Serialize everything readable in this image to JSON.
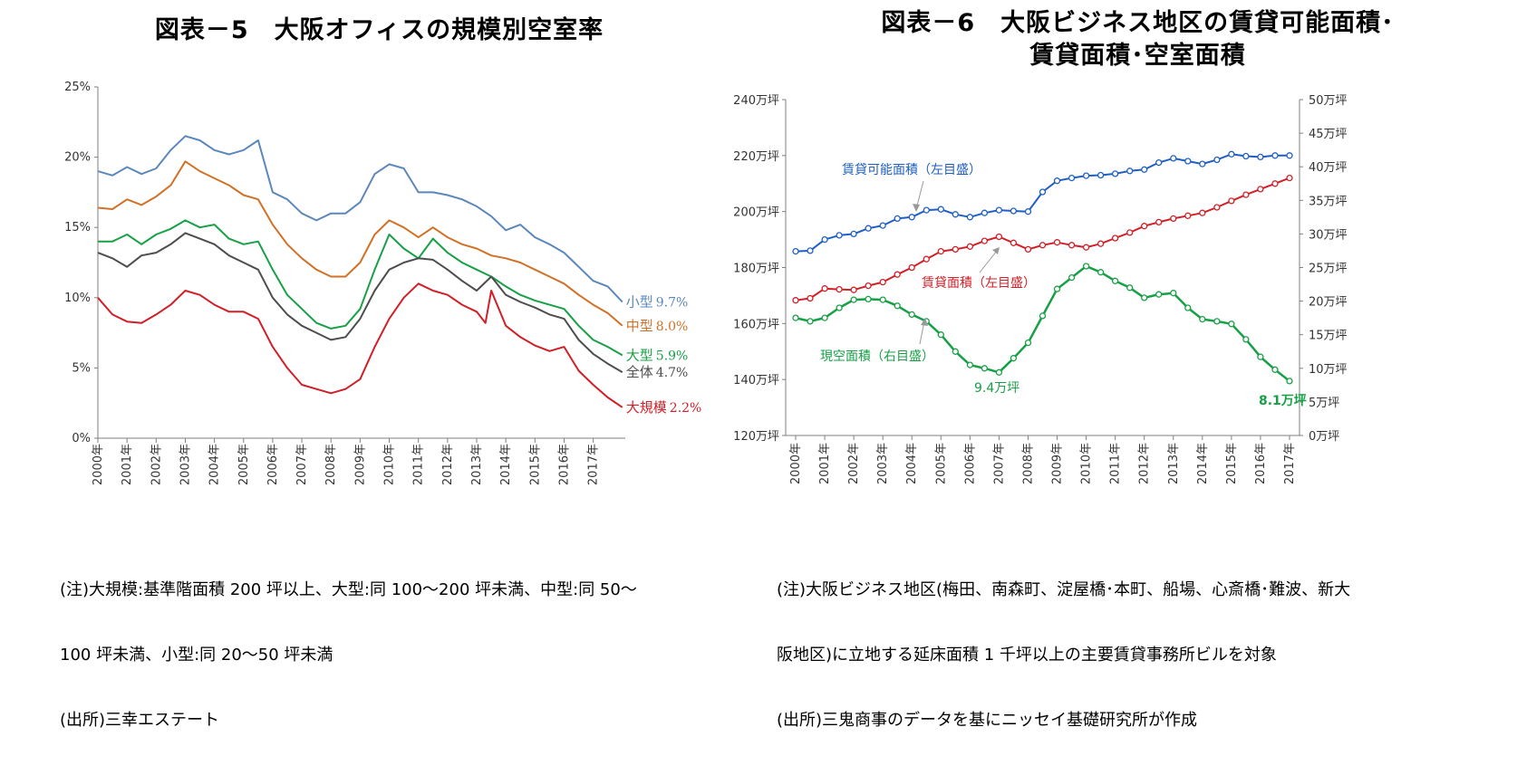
{
  "left": {
    "title": "図表－5　大阪オフィスの規模別空室率",
    "notes": [
      "(注)大規模:基準階面積 200 坪以上、大型:同 100～200 坪未満、中型:同 50～",
      "100 坪未満、小型:同 20～50 坪未満",
      "(出所)三幸エステート"
    ]
  },
  "right": {
    "title_line1": "図表－6　大阪ビジネス地区の賃貸可能面積･",
    "title_line2": "賃貸面積･空室面積",
    "notes": [
      "(注)大阪ビジネス地区(梅田、南森町、淀屋橋･本町、船場、心斎橋･難波、新大",
      "阪地区)に立地する延床面積 1 千坪以上の主要賃貸事務所ビルを対象",
      "(出所)三鬼商事のデータを基にニッセイ基礎研究所が作成"
    ]
  },
  "chart_data": [
    {
      "type": "line",
      "title": "図表－5　大阪オフィスの規模別空室率",
      "ylim": [
        0,
        25
      ],
      "yticks": [
        "0%",
        "5%",
        "10%",
        "15%",
        "20%",
        "25%"
      ],
      "xlim": [
        2000.0,
        2018.1
      ],
      "categories": [
        "2000年",
        "2001年",
        "2002年",
        "2003年",
        "2004年",
        "2005年",
        "2006年",
        "2007年",
        "2008年",
        "2009年",
        "2010年",
        "2011年",
        "2012年",
        "2013年",
        "2014年",
        "2015年",
        "2016年",
        "2017年"
      ],
      "series": [
        {
          "name": "小型",
          "end_label": "9.7%",
          "color": "#5b87bb",
          "x": [
            2000.0,
            2000.5,
            2001.0,
            2001.5,
            2002.0,
            2002.5,
            2003.0,
            2003.5,
            2004.0,
            2004.5,
            2005.0,
            2005.5,
            2006.0,
            2006.5,
            2007.0,
            2007.5,
            2008.0,
            2008.5,
            2009.0,
            2009.5,
            2010.0,
            2010.5,
            2011.0,
            2011.5,
            2012.0,
            2012.5,
            2013.0,
            2013.5,
            2014.0,
            2014.5,
            2015.0,
            2015.5,
            2016.0,
            2016.5,
            2017.0,
            2017.5,
            2018.0
          ],
          "values": [
            19.0,
            18.7,
            19.3,
            18.8,
            19.2,
            20.5,
            21.5,
            21.2,
            20.5,
            20.2,
            20.5,
            21.2,
            17.5,
            17.0,
            16.0,
            15.5,
            16.0,
            16.0,
            16.8,
            18.8,
            19.5,
            19.2,
            17.5,
            17.5,
            17.3,
            17.0,
            16.5,
            15.8,
            14.8,
            15.2,
            14.3,
            13.8,
            13.2,
            12.2,
            11.2,
            10.8,
            9.7
          ]
        },
        {
          "name": "中型",
          "end_label": "8.0%",
          "color": "#d17128",
          "x": [
            2000.0,
            2000.5,
            2001.0,
            2001.5,
            2002.0,
            2002.5,
            2003.0,
            2003.5,
            2004.0,
            2004.5,
            2005.0,
            2005.5,
            2006.0,
            2006.5,
            2007.0,
            2007.5,
            2008.0,
            2008.5,
            2009.0,
            2009.5,
            2010.0,
            2010.5,
            2011.0,
            2011.5,
            2012.0,
            2012.5,
            2013.0,
            2013.5,
            2014.0,
            2014.5,
            2015.0,
            2015.5,
            2016.0,
            2016.5,
            2017.0,
            2017.5,
            2018.0
          ],
          "values": [
            16.4,
            16.3,
            17.0,
            16.6,
            17.2,
            18.0,
            19.7,
            19.0,
            18.5,
            18.0,
            17.3,
            17.0,
            15.2,
            13.8,
            12.8,
            12.0,
            11.5,
            11.5,
            12.5,
            14.5,
            15.5,
            15.0,
            14.3,
            15.0,
            14.3,
            13.8,
            13.5,
            13.0,
            12.8,
            12.5,
            12.0,
            11.5,
            11.0,
            10.2,
            9.5,
            8.9,
            8.0
          ]
        },
        {
          "name": "大型",
          "end_label": "5.9%",
          "color": "#17a045",
          "x": [
            2000.0,
            2000.5,
            2001.0,
            2001.5,
            2002.0,
            2002.5,
            2003.0,
            2003.5,
            2004.0,
            2004.5,
            2005.0,
            2005.5,
            2006.0,
            2006.5,
            2007.0,
            2007.5,
            2008.0,
            2008.5,
            2009.0,
            2009.5,
            2010.0,
            2010.5,
            2011.0,
            2011.5,
            2012.0,
            2012.5,
            2013.0,
            2013.5,
            2014.0,
            2014.5,
            2015.0,
            2015.5,
            2016.0,
            2016.5,
            2017.0,
            2017.5,
            2018.0
          ],
          "values": [
            14.0,
            14.0,
            14.5,
            13.8,
            14.5,
            14.9,
            15.5,
            15.0,
            15.2,
            14.2,
            13.8,
            14.0,
            12.0,
            10.2,
            9.2,
            8.2,
            7.8,
            8.0,
            9.2,
            12.0,
            14.5,
            13.5,
            12.8,
            14.2,
            13.2,
            12.5,
            12.0,
            11.5,
            10.8,
            10.2,
            9.8,
            9.5,
            9.2,
            8.0,
            7.0,
            6.5,
            5.9
          ]
        },
        {
          "name": "全体",
          "end_label": "4.7%",
          "color": "#4d4d4d",
          "x": [
            2000.0,
            2000.5,
            2001.0,
            2001.5,
            2002.0,
            2002.5,
            2003.0,
            2003.5,
            2004.0,
            2004.5,
            2005.0,
            2005.5,
            2006.0,
            2006.5,
            2007.0,
            2007.5,
            2008.0,
            2008.5,
            2009.0,
            2009.5,
            2010.0,
            2010.5,
            2011.0,
            2011.5,
            2012.0,
            2012.5,
            2013.0,
            2013.5,
            2014.0,
            2014.5,
            2015.0,
            2015.5,
            2016.0,
            2016.5,
            2017.0,
            2017.5,
            2018.0
          ],
          "values": [
            13.2,
            12.8,
            12.2,
            13.0,
            13.2,
            13.8,
            14.6,
            14.2,
            13.8,
            13.0,
            12.5,
            12.0,
            10.0,
            8.8,
            8.0,
            7.5,
            7.0,
            7.2,
            8.5,
            10.5,
            12.0,
            12.5,
            12.8,
            12.7,
            12.0,
            11.2,
            10.5,
            11.5,
            10.2,
            9.7,
            9.3,
            8.8,
            8.5,
            7.0,
            6.0,
            5.3,
            4.7
          ]
        },
        {
          "name": "大規模",
          "end_label": "2.2%",
          "color": "#d11f27",
          "x": [
            2000.0,
            2000.5,
            2001.0,
            2001.5,
            2002.0,
            2002.5,
            2003.0,
            2003.5,
            2004.0,
            2004.5,
            2005.0,
            2005.5,
            2006.0,
            2006.5,
            2007.0,
            2007.5,
            2008.0,
            2008.5,
            2009.0,
            2009.5,
            2010.0,
            2010.5,
            2011.0,
            2011.5,
            2012.0,
            2012.5,
            2013.0,
            2013.3,
            2013.5,
            2014.0,
            2014.5,
            2015.0,
            2015.5,
            2016.0,
            2016.5,
            2017.0,
            2017.5,
            2018.0
          ],
          "values": [
            10.0,
            8.8,
            8.3,
            8.2,
            8.8,
            9.5,
            10.5,
            10.2,
            9.5,
            9.0,
            9.0,
            8.5,
            6.5,
            5.0,
            3.8,
            3.5,
            3.2,
            3.5,
            4.2,
            6.5,
            8.5,
            10.0,
            11.0,
            10.5,
            10.2,
            9.5,
            9.0,
            8.2,
            10.5,
            8.0,
            7.2,
            6.6,
            6.2,
            6.5,
            4.8,
            3.8,
            2.9,
            2.2
          ]
        }
      ]
    },
    {
      "type": "line",
      "title": "図表－6　大阪ビジネス地区の賃貸可能面積･賃貸面積･空室面積",
      "categories": [
        "2000年",
        "2001年",
        "2002年",
        "2003年",
        "2004年",
        "2005年",
        "2006年",
        "2007年",
        "2008年",
        "2009年",
        "2010年",
        "2011年",
        "2012年",
        "2013年",
        "2014年",
        "2015年",
        "2016年",
        "2017年"
      ],
      "y_left": {
        "ylim": [
          120,
          240
        ],
        "ticks": [
          "120万坪",
          "140万坪",
          "160万坪",
          "180万坪",
          "200万坪",
          "220万坪",
          "240万坪"
        ]
      },
      "y_right": {
        "ylim": [
          0,
          50
        ],
        "ticks": [
          "0万坪",
          "5万坪",
          "10万坪",
          "15万坪",
          "20万坪",
          "25万坪",
          "30万坪",
          "35万坪",
          "40万坪",
          "45万坪",
          "50万坪"
        ]
      },
      "series": [
        {
          "name": "賃貸可能面積（左目盛）",
          "axis": "left",
          "color": "#1f5fc4",
          "x": [
            2000.0,
            2000.5,
            2001.0,
            2001.5,
            2002.0,
            2002.5,
            2003.0,
            2003.5,
            2004.0,
            2004.5,
            2005.0,
            2005.5,
            2006.0,
            2006.5,
            2007.0,
            2007.5,
            2008.0,
            2008.5,
            2009.0,
            2009.5,
            2010.0,
            2010.5,
            2011.0,
            2011.5,
            2012.0,
            2012.5,
            2013.0,
            2013.5,
            2014.0,
            2014.5,
            2015.0,
            2015.5,
            2016.0,
            2016.5,
            2017.0
          ],
          "values": [
            185.8,
            186.0,
            190.0,
            191.5,
            192.0,
            194.0,
            195.0,
            197.5,
            198.0,
            200.5,
            200.8,
            199.0,
            198.0,
            199.5,
            200.5,
            200.2,
            200.0,
            207.0,
            211.0,
            212.0,
            212.8,
            213.0,
            213.5,
            214.5,
            215.0,
            217.5,
            219.0,
            218.0,
            217.0,
            218.5,
            220.5,
            219.8,
            219.5,
            220.0,
            220.0
          ]
        },
        {
          "name": "賃貸面積（左目盛）",
          "axis": "left",
          "color": "#d11f27",
          "x": [
            2000.0,
            2000.5,
            2001.0,
            2001.5,
            2002.0,
            2002.5,
            2003.0,
            2003.5,
            2004.0,
            2004.5,
            2005.0,
            2005.5,
            2006.0,
            2006.5,
            2007.0,
            2007.5,
            2008.0,
            2008.5,
            2009.0,
            2009.5,
            2010.0,
            2010.5,
            2011.0,
            2011.5,
            2012.0,
            2012.5,
            2013.0,
            2013.5,
            2014.0,
            2014.5,
            2015.0,
            2015.5,
            2016.0,
            2016.5,
            2017.0
          ],
          "values": [
            168.3,
            169.0,
            172.5,
            172.2,
            172.0,
            173.5,
            174.8,
            177.5,
            180.0,
            183.0,
            185.8,
            186.5,
            187.5,
            189.5,
            191.0,
            188.8,
            186.5,
            188.0,
            189.0,
            188.0,
            187.2,
            188.5,
            190.5,
            192.5,
            194.8,
            196.2,
            197.5,
            198.5,
            199.5,
            201.5,
            203.8,
            206.0,
            208.0,
            210.0,
            212.0
          ]
        },
        {
          "name": "現空面積（右目盛）",
          "axis": "right",
          "color": "#17a045",
          "x": [
            2000.0,
            2000.5,
            2001.0,
            2001.5,
            2002.0,
            2002.5,
            2003.0,
            2003.5,
            2004.0,
            2004.5,
            2005.0,
            2005.5,
            2006.0,
            2006.5,
            2007.0,
            2007.5,
            2008.0,
            2008.5,
            2009.0,
            2009.5,
            2010.0,
            2010.5,
            2011.0,
            2011.5,
            2012.0,
            2012.5,
            2013.0,
            2013.5,
            2014.0,
            2014.5,
            2015.0,
            2015.5,
            2016.0,
            2016.5,
            2017.0
          ],
          "values": [
            17.5,
            17.0,
            17.5,
            19.0,
            20.2,
            20.3,
            20.2,
            19.3,
            18.0,
            17.0,
            15.0,
            12.5,
            10.5,
            10.0,
            9.4,
            11.5,
            13.8,
            17.8,
            21.8,
            23.5,
            25.2,
            24.3,
            23.0,
            22.0,
            20.5,
            21.0,
            21.2,
            19.0,
            17.3,
            17.0,
            16.6,
            14.3,
            11.7,
            9.8,
            8.1
          ]
        }
      ],
      "annotations": [
        {
          "text": "賃貸可能面積（左目盛）",
          "color": "#1f5fc4"
        },
        {
          "text": "賃貸面積（左目盛）",
          "color": "#d11f27"
        },
        {
          "text": "現空面積（右目盛）",
          "color": "#17a045"
        },
        {
          "text": "9.4万坪",
          "color": "#17a045"
        },
        {
          "text": "8.1万坪",
          "color": "#17a045"
        }
      ]
    }
  ]
}
